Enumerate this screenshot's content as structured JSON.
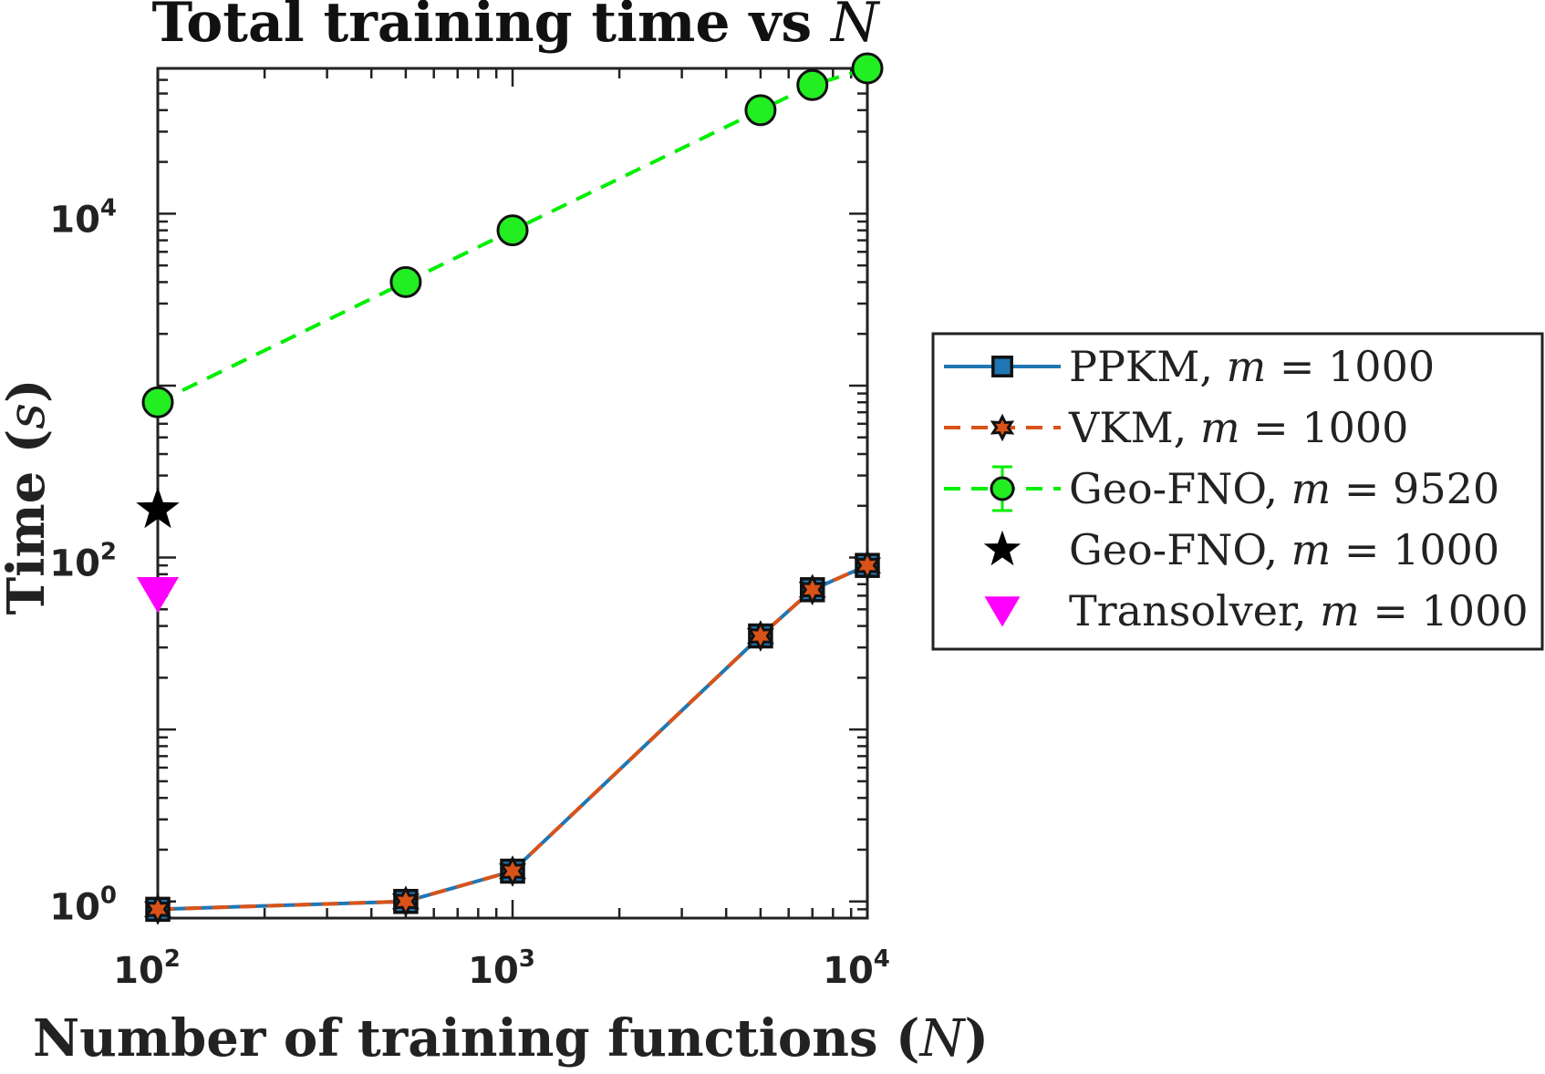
{
  "chart_data": {
    "type": "line",
    "title": "Total training time vs N",
    "title_prefix": "Total training time vs ",
    "title_var": "N",
    "xlabel": "Number of training functions (N)",
    "xlabel_prefix": "Number of training functions (",
    "xlabel_var": "N",
    "xlabel_suffix": ")",
    "ylabel": "Time (s)",
    "ylabel_prefix": "Time (",
    "ylabel_var": "s",
    "ylabel_suffix": ")",
    "xscale": "log",
    "yscale": "log",
    "xlim": [
      100,
      10000
    ],
    "ylim": [
      0.8,
      70000
    ],
    "grid": false,
    "x_ticks": [
      {
        "base": "10",
        "exp": "2",
        "value": 100
      },
      {
        "base": "10",
        "exp": "3",
        "value": 1000
      },
      {
        "base": "10",
        "exp": "4",
        "value": 10000
      }
    ],
    "y_ticks": [
      {
        "base": "10",
        "exp": "0",
        "value": 1
      },
      {
        "base": "10",
        "exp": "2",
        "value": 100
      },
      {
        "base": "10",
        "exp": "4",
        "value": 10000
      }
    ],
    "legend_position": "outside-right",
    "series": [
      {
        "name": "PPKM, m = 1000",
        "label_prefix": "PPKM,  ",
        "label_var": "m",
        "label_suffix": " = 1000",
        "color": "#1f77b4",
        "line_style": "solid",
        "marker": "square",
        "marker_color": "#1f77b4",
        "x": [
          100,
          500,
          1000,
          5000,
          7000,
          10000
        ],
        "values": [
          0.9,
          1.0,
          1.5,
          35,
          65,
          90
        ]
      },
      {
        "name": "VKM, m = 1000",
        "label_prefix": "VKM, ",
        "label_var": "m",
        "label_suffix": " = 1000",
        "color": "#d95319",
        "line_style": "dashed",
        "marker": "hexagram",
        "marker_color": "#d95319",
        "x": [
          100,
          500,
          1000,
          5000,
          7000,
          10000
        ],
        "values": [
          0.9,
          1.0,
          1.5,
          35,
          65,
          90
        ]
      },
      {
        "name": "Geo-FNO, m = 9520",
        "label_prefix": "Geo-FNO, ",
        "label_var": "m",
        "label_suffix": " = 9520",
        "color": "#00ee00",
        "line_style": "dashed",
        "marker": "circle",
        "marker_color": "#22ee22",
        "x": [
          100,
          500,
          1000,
          5000,
          7000,
          10000
        ],
        "values": [
          800,
          4000,
          8000,
          40000,
          56000,
          70000
        ]
      },
      {
        "name": "Geo-FNO, m = 1000",
        "label_prefix": "Geo-FNO, ",
        "label_var": "m",
        "label_suffix": " = 1000",
        "color": "#000000",
        "line_style": "none",
        "marker": "star",
        "marker_color": "#000000",
        "x": [
          100
        ],
        "values": [
          190
        ]
      },
      {
        "name": "Transolver, m = 1000",
        "label_prefix": "Transolver, ",
        "label_var": "m",
        "label_suffix": " = 1000",
        "color": "#ff00ff",
        "line_style": "none",
        "marker": "triangle-down",
        "marker_color": "#ff00ff",
        "x": [
          100
        ],
        "values": [
          65
        ]
      }
    ]
  }
}
